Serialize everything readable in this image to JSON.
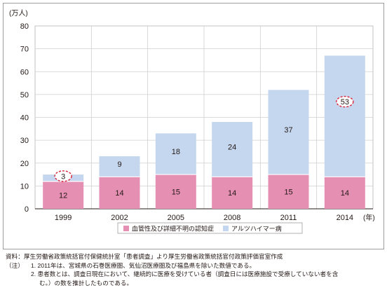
{
  "chart_data": {
    "type": "bar",
    "stacked": true,
    "unit_label": "(万人)",
    "x_unit_label": "(年)",
    "categories": [
      "1999",
      "2002",
      "2005",
      "2008",
      "2011",
      "2014"
    ],
    "ylim": [
      0,
      80
    ],
    "yticks": [
      0,
      10,
      20,
      30,
      40,
      50,
      60,
      70,
      80
    ],
    "grid": true,
    "legend_position": "bottom-center",
    "series": [
      {
        "name": "血管性及び詳細不明の認知症",
        "color": "#e58fb3",
        "values": [
          12,
          14,
          15,
          14,
          15,
          14
        ]
      },
      {
        "name": "アルツハイマー病",
        "color": "#c5d7ee",
        "values": [
          3,
          9,
          18,
          24,
          37,
          53
        ]
      }
    ],
    "highlighted": [
      {
        "category": "1999",
        "series": "アルツハイマー病"
      },
      {
        "category": "2014",
        "series": "アルツハイマー病"
      }
    ],
    "highlight_color": "#d7263d"
  },
  "notes": {
    "source_label": "資料：",
    "source_text": "厚生労働省政策統括官付保健統計室「患者調査」より厚生労働省政策統括官付政策評価官室作成",
    "notes_label": "（注）",
    "note1": "1. 2011年は、宮城県の石巻医療圏、気仙沼医療圏及び福島県を除いた数値である。",
    "note2": "2. 患者数とは、調査日現在において、継続的に医療を受けている者（調査日には医療施設で受療していない者を含",
    "note2_cont": "む。）の数を推計したものである。"
  }
}
